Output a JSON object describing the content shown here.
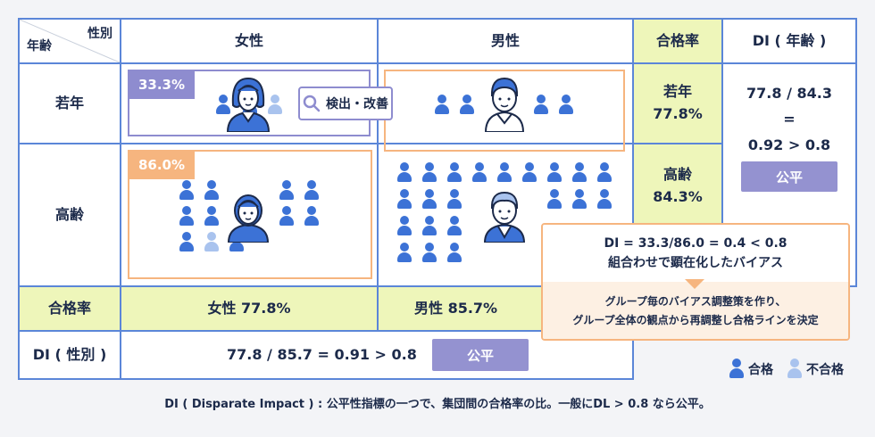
{
  "header": {
    "corner_top": "性別",
    "corner_bottom": "年齢",
    "female": "女性",
    "male": "男性",
    "pass_rate": "合格率",
    "di_age": "DI ( 年齢 )"
  },
  "rows": {
    "young": "若年",
    "senior": "高齢",
    "pass_rate": "合格率",
    "di_gender": "DI ( 性別 )"
  },
  "tags": {
    "young_female_rate": "33.3%",
    "senior_female_rate": "86.0%"
  },
  "detect_button": "検出・改善",
  "age_rates": {
    "young_label": "若年",
    "young_value": "77.8%",
    "senior_label": "高齢",
    "senior_value": "84.3%"
  },
  "di_age_formula": {
    "line1": "77.8 / 84.3",
    "line2": "=",
    "line3": "0.92 > 0.8",
    "badge": "公平"
  },
  "gender_rates": {
    "female": "女性 77.8%",
    "male": "男性 85.7%"
  },
  "di_gender_formula": {
    "text": "77.8 / 85.7 = 0.91 > 0.8",
    "badge": "公平"
  },
  "callout": {
    "line1": "DI = 33.3/86.0 = 0.4 < 0.8",
    "line2": "組合わせで顕在化したバイアス",
    "line3": "グループ毎のバイアス調整策を作り、",
    "line4": "グループ全体の観点から再調整し合格ラインを決定"
  },
  "legend": {
    "pass": "合格",
    "fail": "不合格"
  },
  "footer": "DI ( Disparate Impact ) : 公平性指標の一つで、集団間の合格率の比。一般にDL > 0.8 なら公平。",
  "colors": {
    "border_blue": "#5b86d8",
    "accent_purple": "#8e8ccf",
    "accent_orange": "#f6b57f",
    "cell_yellow": "#eef6ba",
    "pass_icon": "#3c72d6",
    "fail_icon": "#a9c3ee"
  }
}
